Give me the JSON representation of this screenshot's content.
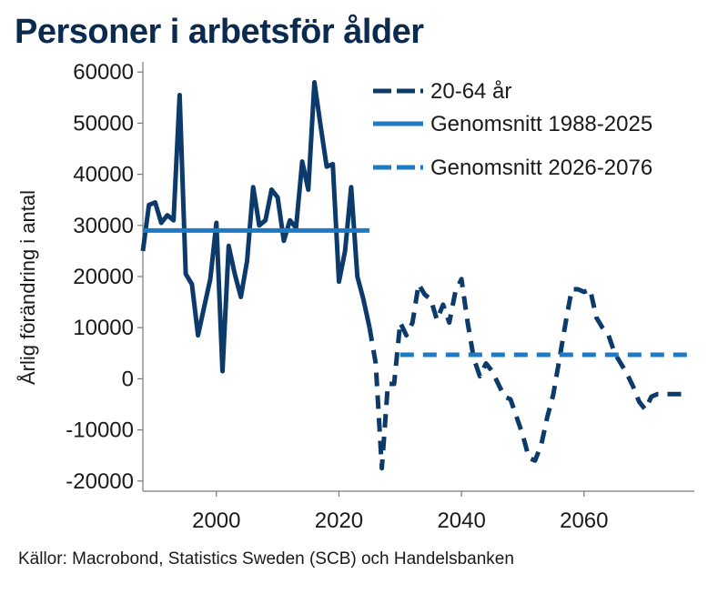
{
  "title": "Personer i arbetsför ålder",
  "source": "Källor: Macrobond, Statistics Sweden (SCB) och Handelsbanken",
  "colors": {
    "dark_navy": "#0b3a6b",
    "mid_blue": "#1f7ac4",
    "title": "#0b2a4f"
  },
  "chart_data": {
    "type": "line",
    "title": "Personer i arbetsför ålder",
    "ylabel": "Årlig förändring i antal",
    "xlabel": "",
    "xlim": [
      1988,
      2078
    ],
    "ylim": [
      -22000,
      62000
    ],
    "yticks": [
      60000,
      50000,
      40000,
      30000,
      20000,
      10000,
      0,
      -10000,
      -20000
    ],
    "ytick_labels": [
      "60000",
      "50000",
      "40000",
      "30000",
      "20000",
      "10000",
      "0",
      "-10000",
      "-20000"
    ],
    "xticks": [
      2000,
      2020,
      2040,
      2060
    ],
    "xtick_labels": [
      "2000",
      "2020",
      "2040",
      "2060"
    ],
    "legend_position": "top-right",
    "grid": false,
    "series": [
      {
        "name": "20-64 år",
        "style": "solid",
        "color": "#0b3a6b",
        "x": [
          1988,
          1989,
          1990,
          1991,
          1992,
          1993,
          1994,
          1995,
          1996,
          1997,
          1998,
          1999,
          2000,
          2001,
          2002,
          2003,
          2004,
          2005,
          2006,
          2007,
          2008,
          2009,
          2010,
          2011,
          2012,
          2013,
          2014,
          2015,
          2016,
          2017,
          2018,
          2019,
          2020,
          2021,
          2022,
          2023,
          2024,
          2025
        ],
        "values": [
          25000,
          34000,
          34500,
          30500,
          32000,
          31000,
          55500,
          20500,
          18500,
          8500,
          14000,
          19500,
          30500,
          1500,
          26000,
          20500,
          16000,
          23000,
          37500,
          30000,
          31000,
          37000,
          35500,
          27000,
          31000,
          29500,
          42500,
          37000,
          58000,
          49500,
          41500,
          42000,
          19000,
          25000,
          37500,
          20000,
          15500,
          10000
        ]
      },
      {
        "name": "20-64 år",
        "style": "dashed",
        "color": "#0b3a6b",
        "x": [
          2025,
          2026,
          2027,
          2028,
          2029,
          2030,
          2031,
          2032,
          2033,
          2034,
          2035,
          2036,
          2037,
          2038,
          2039,
          2040,
          2041,
          2042,
          2043,
          2044,
          2045,
          2046,
          2047,
          2048,
          2049,
          2050,
          2051,
          2052,
          2053,
          2054,
          2055,
          2056,
          2057,
          2058,
          2059,
          2060,
          2061,
          2062,
          2063,
          2064,
          2065,
          2066,
          2067,
          2068,
          2069,
          2070,
          2071,
          2072,
          2073,
          2074,
          2075,
          2076,
          2077
        ],
        "values": [
          10000,
          3000,
          -17500,
          -1000,
          -1000,
          11000,
          8500,
          11000,
          18500,
          16500,
          15500,
          11500,
          14500,
          11000,
          17000,
          19500,
          11000,
          4000,
          500,
          3000,
          1500,
          -1000,
          -3500,
          -4000,
          -7500,
          -11000,
          -15500,
          -16000,
          -13000,
          -7500,
          -3000,
          4000,
          11000,
          17500,
          17500,
          17000,
          17500,
          12000,
          10000,
          8500,
          5000,
          3000,
          1000,
          -1500,
          -4500,
          -6000,
          -3500,
          -3000,
          -3000,
          -3000,
          -3000,
          -3000,
          -3000
        ]
      },
      {
        "name": "Genomsnitt 1988-2025",
        "style": "solid",
        "color": "#1f7ac4",
        "x": [
          1988,
          2025
        ],
        "values": [
          29000,
          29000
        ]
      },
      {
        "name": "Genomsnitt 2026-2076",
        "style": "dashed",
        "color": "#1f7ac4",
        "x": [
          2030,
          2077
        ],
        "values": [
          4700,
          4700
        ]
      }
    ],
    "legend": [
      {
        "label": "20-64 år",
        "style": "dashed",
        "color": "#0b3a6b"
      },
      {
        "label": "Genomsnitt 1988-2025",
        "style": "solid",
        "color": "#1f7ac4"
      },
      {
        "label": "Genomsnitt 2026-2076",
        "style": "dashed",
        "color": "#1f7ac4"
      }
    ]
  }
}
